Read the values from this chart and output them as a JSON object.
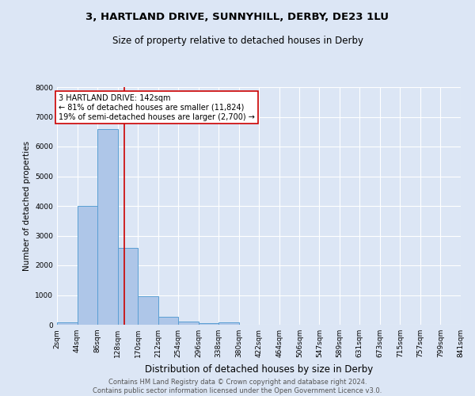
{
  "title1": "3, HARTLAND DRIVE, SUNNYHILL, DERBY, DE23 1LU",
  "title2": "Size of property relative to detached houses in Derby",
  "xlabel": "Distribution of detached houses by size in Derby",
  "ylabel": "Number of detached properties",
  "footer1": "Contains HM Land Registry data © Crown copyright and database right 2024.",
  "footer2": "Contains public sector information licensed under the Open Government Licence v3.0.",
  "annotation_line1": "3 HARTLAND DRIVE: 142sqm",
  "annotation_line2": "← 81% of detached houses are smaller (11,824)",
  "annotation_line3": "19% of semi-detached houses are larger (2,700) →",
  "property_size": 142,
  "bar_edges": [
    2,
    44,
    86,
    128,
    170,
    212,
    254,
    296,
    338,
    380,
    422,
    464,
    506,
    547,
    589,
    631,
    673,
    715,
    757,
    799,
    841
  ],
  "bar_heights": [
    80,
    4000,
    6600,
    2600,
    950,
    270,
    100,
    50,
    80,
    0,
    0,
    0,
    0,
    0,
    0,
    0,
    0,
    0,
    0,
    0
  ],
  "bar_color": "#aec6e8",
  "bar_edge_color": "#5a9fd4",
  "red_line_color": "#cc0000",
  "bg_color": "#dce6f5",
  "annotation_box_color": "#ffffff",
  "annotation_border_color": "#cc0000",
  "ylim": [
    0,
    8000
  ],
  "yticks": [
    0,
    1000,
    2000,
    3000,
    4000,
    5000,
    6000,
    7000,
    8000
  ],
  "title1_fontsize": 9.5,
  "title2_fontsize": 8.5,
  "xlabel_fontsize": 8.5,
  "ylabel_fontsize": 7.5,
  "tick_fontsize": 6.5,
  "annotation_fontsize": 7.0,
  "footer_fontsize": 6.0
}
